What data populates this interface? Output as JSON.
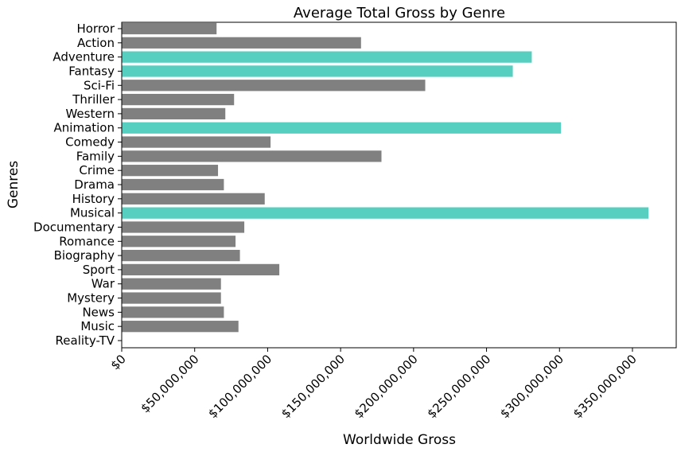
{
  "chart_data": {
    "type": "bar",
    "orientation": "horizontal",
    "title": "Average Total Gross by Genre",
    "xlabel": "Worldwide Gross",
    "ylabel": "Genres",
    "categories": [
      "Horror",
      "Action",
      "Adventure",
      "Fantasy",
      "Sci-Fi",
      "Thriller",
      "Western",
      "Animation",
      "Comedy",
      "Family",
      "Crime",
      "Drama",
      "History",
      "Musical",
      "Documentary",
      "Romance",
      "Biography",
      "Sport",
      "War",
      "Mystery",
      "News",
      "Music",
      "Reality-TV"
    ],
    "values": [
      65000000,
      164000000,
      281000000,
      268000000,
      208000000,
      77000000,
      71000000,
      301000000,
      102000000,
      178000000,
      66000000,
      70000000,
      98000000,
      361000000,
      84000000,
      78000000,
      81000000,
      108000000,
      68000000,
      68000000,
      70000000,
      80000000,
      0
    ],
    "highlighted": [
      "Adventure",
      "Fantasy",
      "Animation",
      "Musical"
    ],
    "xlim": [
      0,
      380000000
    ],
    "xticks": [
      0,
      50000000,
      100000000,
      150000000,
      200000000,
      250000000,
      300000000,
      350000000
    ],
    "xtick_labels": [
      "$0",
      "$50,000,000",
      "$100,000,000",
      "$150,000,000",
      "$200,000,000",
      "$250,000,000",
      "$300,000,000",
      "$350,000,000"
    ],
    "grid": false,
    "legend": "none",
    "colors": {
      "default": "#808080",
      "highlight": "#56cfc0",
      "axis": "#000000"
    }
  }
}
